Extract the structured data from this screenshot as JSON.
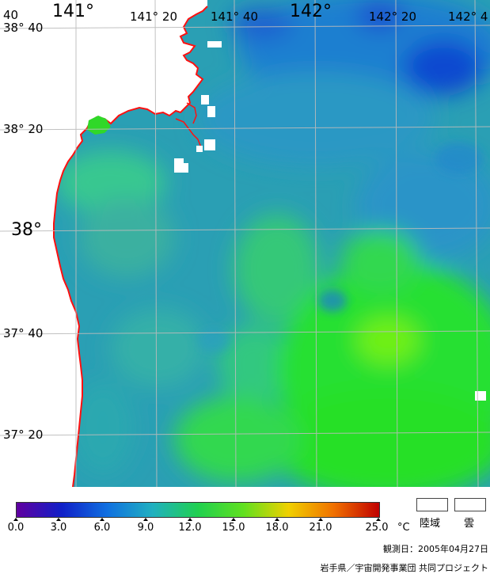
{
  "map": {
    "lon_labels": [
      {
        "text": "141°",
        "size": "big"
      },
      {
        "text": "141° 20",
        "size": "small"
      },
      {
        "text": "141° 40",
        "size": "small"
      },
      {
        "text": "142°",
        "size": "big"
      },
      {
        "text": "142° 20",
        "size": "small"
      },
      {
        "text": "142° 4",
        "size": "small"
      }
    ],
    "lat_labels": [
      {
        "text": "38° 40",
        "size": "small"
      },
      {
        "text": "38° 20",
        "size": "small"
      },
      {
        "text": "38°",
        "size": "big"
      },
      {
        "text": "37° 40",
        "size": "small"
      },
      {
        "text": "37° 20",
        "size": "small"
      }
    ],
    "corner_label": "40",
    "colors": {
      "land": "#ffffff",
      "coastline": "#ff1010",
      "grid": "#bbbbbb",
      "sea_base": "#2a9fb4",
      "warm": "#28e628",
      "cold": "#1560d8"
    }
  },
  "colorbar": {
    "ticks": [
      "0.0",
      "3.0",
      "6.0",
      "9.0",
      "12.0",
      "15.0",
      "18.0",
      "21.0",
      "25.0"
    ],
    "unit": "°C",
    "stops": [
      "#6000a0",
      "#1020c8",
      "#1070e0",
      "#20b0c0",
      "#20d050",
      "#60e020",
      "#f0d000",
      "#f07000",
      "#c00000"
    ]
  },
  "legend": {
    "land_label": "陸域",
    "cloud_label": "雲"
  },
  "observation": "観測日：2005年04月27日",
  "credit": "岩手県／宇宙開発事業団 共同プロジェクト"
}
